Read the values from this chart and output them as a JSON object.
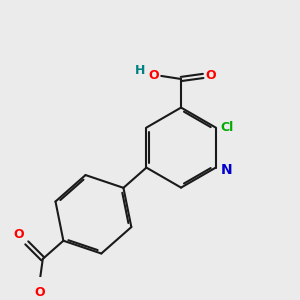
{
  "bg_color": "#ebebeb",
  "bond_color": "#1a1a1a",
  "bond_width": 1.5,
  "atom_colors": {
    "O": "#ff0000",
    "N": "#0000cc",
    "Cl": "#00aa00",
    "H": "#008080",
    "C": "#1a1a1a"
  },
  "font_size": 9
}
